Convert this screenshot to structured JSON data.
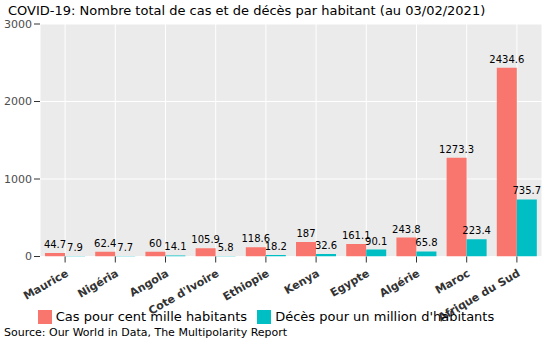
{
  "chart_data": {
    "type": "bar",
    "title": "COVID-19: Nombre total de cas et de décès par habitant (au 03/02/2021)",
    "source": "Source: Our World in Data, The Multipolarity Report",
    "categories": [
      "Maurice",
      "Nigéria",
      "Angola",
      "Cote d'Ivoire",
      "Ethiopie",
      "Kenya",
      "Egypte",
      "Algérie",
      "Maroc",
      "Afrique du Sud"
    ],
    "series": [
      {
        "name": "Cas pour cent mille habitants",
        "color": "#F8766D",
        "values": [
          44.7,
          62.4,
          60,
          105.9,
          118.6,
          187,
          161.1,
          243.8,
          1273.3,
          2434.6
        ]
      },
      {
        "name": "Décès pour un million d'habitants",
        "color": "#00BFC4",
        "values": [
          7.9,
          7.7,
          14.1,
          5.8,
          18.2,
          32.6,
          90.1,
          65.8,
          223.4,
          735.7
        ]
      }
    ],
    "ylim": [
      0,
      3000
    ],
    "yticks": [
      0,
      1000,
      2000,
      3000
    ],
    "grid": true,
    "data_labels": true,
    "legend": "bottom"
  }
}
